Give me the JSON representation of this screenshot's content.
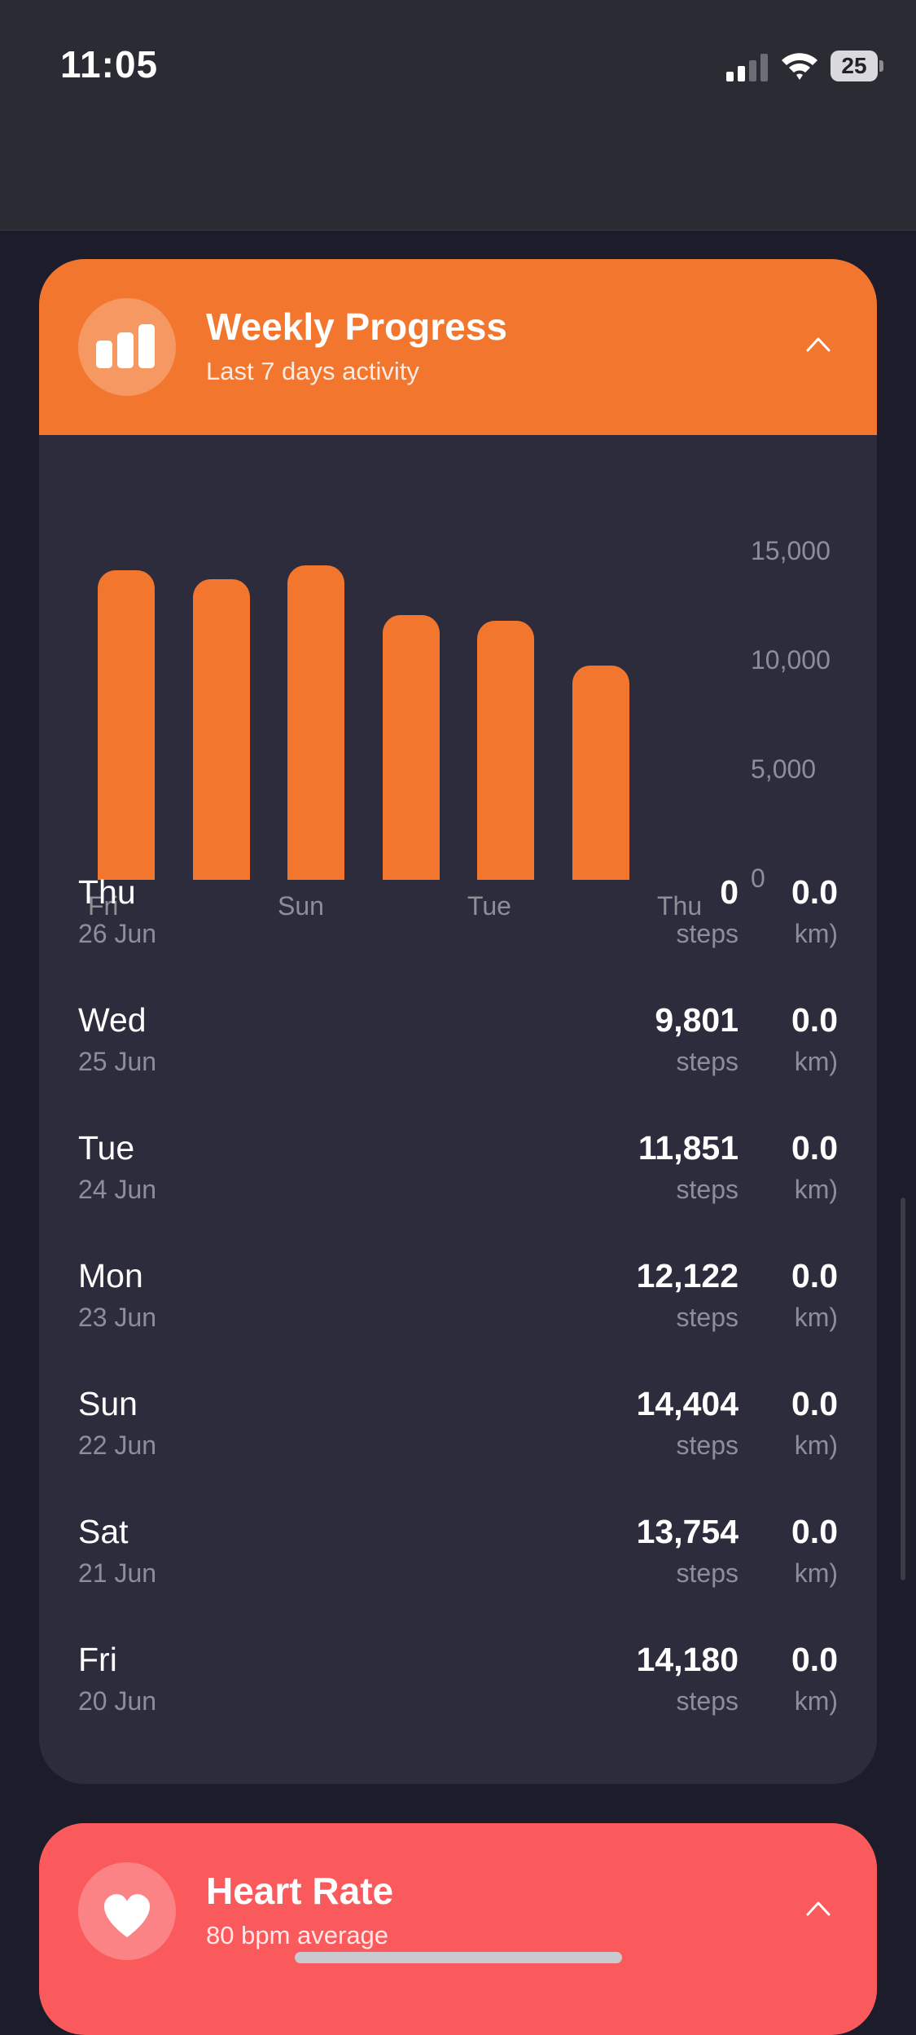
{
  "status": {
    "time": "11:05",
    "battery": "25"
  },
  "weekly": {
    "title": "Weekly Progress",
    "subtitle": "Last 7 days activity",
    "icon": "bar-chart-icon",
    "accent": "#f2762e"
  },
  "chart_data": {
    "type": "bar",
    "categories": [
      "Fri",
      "Sat",
      "Sun",
      "Mon",
      "Tue",
      "Wed",
      "Thu"
    ],
    "values": [
      14180,
      13754,
      14404,
      12122,
      11851,
      9801,
      0
    ],
    "ylim": [
      0,
      15000
    ],
    "yticks": [
      "15,000",
      "10,000",
      "5,000",
      "0"
    ],
    "xtick_labels": [
      "Fri",
      "Sun",
      "Tue",
      "Thu"
    ],
    "ylabel_position": "right",
    "grid": false
  },
  "rows": [
    {
      "day": "Thu",
      "date": "26 Jun",
      "steps": "0",
      "steps_unit": "steps",
      "km": "0.0",
      "km_unit": "km)"
    },
    {
      "day": "Wed",
      "date": "25 Jun",
      "steps": "9,801",
      "steps_unit": "steps",
      "km": "0.0",
      "km_unit": "km)"
    },
    {
      "day": "Tue",
      "date": "24 Jun",
      "steps": "11,851",
      "steps_unit": "steps",
      "km": "0.0",
      "km_unit": "km)"
    },
    {
      "day": "Mon",
      "date": "23 Jun",
      "steps": "12,122",
      "steps_unit": "steps",
      "km": "0.0",
      "km_unit": "km)"
    },
    {
      "day": "Sun",
      "date": "22 Jun",
      "steps": "14,404",
      "steps_unit": "steps",
      "km": "0.0",
      "km_unit": "km)"
    },
    {
      "day": "Sat",
      "date": "21 Jun",
      "steps": "13,754",
      "steps_unit": "steps",
      "km": "0.0",
      "km_unit": "km)"
    },
    {
      "day": "Fri",
      "date": "20 Jun",
      "steps": "14,180",
      "steps_unit": "steps",
      "km": "0.0",
      "km_unit": "km)"
    }
  ],
  "heart": {
    "title": "Heart Rate",
    "subtitle": "80 bpm average",
    "icon": "heart-icon",
    "accent": "#fb5a5c"
  }
}
